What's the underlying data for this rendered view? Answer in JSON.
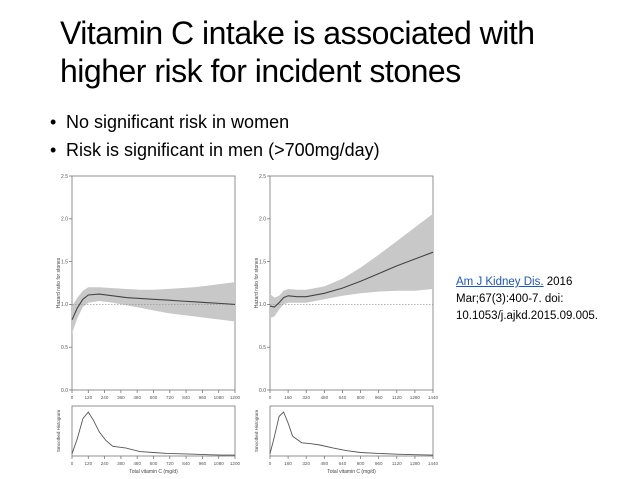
{
  "slide": {
    "title": "Vitamin C intake is associated with higher risk for incident stones",
    "bullets": [
      "No significant risk in women",
      "Risk is significant in men (>700mg/day)"
    ],
    "citation": {
      "link_text": "Am J Kidney Dis.",
      "text": " 2016 Mar;67(3):400-7. doi: 10.1053/j.ajkd.2015.09.005."
    }
  },
  "colors": {
    "band": "#c8c8c8",
    "line": "#444444",
    "link": "#1f57b5"
  },
  "chart_data": [
    {
      "type": "line",
      "ylabel": "Hazard ratio for stones",
      "xlabel": "Total vitamin C (mg/d)",
      "hist_label": "Smoothed Histogram",
      "xlim": [
        0,
        1200
      ],
      "ylim": [
        0,
        2.5
      ],
      "xticks": [
        "0",
        "120",
        "240",
        "360",
        "480",
        "600",
        "720",
        "840",
        "960",
        "1080",
        "1200"
      ],
      "yticks": [
        "0.0",
        "0.5",
        "1.0",
        "1.5",
        "2.0",
        "2.5"
      ],
      "reference_line": 1.0,
      "hr_x": [
        0,
        40,
        80,
        120,
        200,
        300,
        400,
        500,
        600,
        700,
        800,
        900,
        1000,
        1100,
        1200
      ],
      "hr": [
        0.82,
        0.96,
        1.06,
        1.11,
        1.12,
        1.1,
        1.08,
        1.07,
        1.06,
        1.05,
        1.04,
        1.03,
        1.02,
        1.01,
        1.0
      ],
      "ci_lower": [
        0.66,
        0.84,
        0.97,
        1.02,
        1.04,
        1.02,
        0.99,
        0.96,
        0.93,
        0.9,
        0.88,
        0.86,
        0.84,
        0.82,
        0.8
      ],
      "ci_upper": [
        0.98,
        1.08,
        1.16,
        1.2,
        1.2,
        1.19,
        1.18,
        1.17,
        1.17,
        1.18,
        1.19,
        1.2,
        1.22,
        1.24,
        1.26
      ],
      "hist_x": [
        0,
        40,
        80,
        120,
        160,
        200,
        250,
        300,
        350,
        400,
        500,
        600,
        700,
        800,
        900,
        1000,
        1100,
        1200
      ],
      "hist_y": [
        0.05,
        0.4,
        0.85,
        1.0,
        0.8,
        0.55,
        0.35,
        0.22,
        0.2,
        0.18,
        0.1,
        0.08,
        0.06,
        0.05,
        0.04,
        0.03,
        0.02,
        0.02
      ]
    },
    {
      "type": "line",
      "ylabel": "Hazard ratio for stones",
      "xlabel": "Total vitamin C (mg/d)",
      "hist_label": "Smoothed Histogram",
      "xlim": [
        0,
        1440
      ],
      "ylim": [
        0,
        2.5
      ],
      "xticks": [
        "0",
        "160",
        "320",
        "480",
        "640",
        "800",
        "960",
        "1120",
        "1280",
        "1440"
      ],
      "yticks": [
        "0.0",
        "0.5",
        "1.0",
        "1.5",
        "2.0",
        "2.5"
      ],
      "reference_line": 1.0,
      "hr_x": [
        0,
        40,
        80,
        120,
        160,
        240,
        320,
        480,
        640,
        800,
        960,
        1120,
        1280,
        1440
      ],
      "hr": [
        0.98,
        0.97,
        1.02,
        1.08,
        1.1,
        1.09,
        1.09,
        1.13,
        1.19,
        1.27,
        1.36,
        1.45,
        1.53,
        1.61
      ],
      "ci_lower": [
        0.84,
        0.86,
        0.94,
        1.0,
        1.02,
        1.02,
        1.02,
        1.06,
        1.1,
        1.13,
        1.15,
        1.16,
        1.16,
        1.18
      ],
      "ci_upper": [
        1.12,
        1.08,
        1.1,
        1.16,
        1.18,
        1.17,
        1.17,
        1.21,
        1.3,
        1.43,
        1.58,
        1.74,
        1.9,
        2.06
      ],
      "hist_x": [
        0,
        40,
        80,
        120,
        160,
        200,
        280,
        360,
        440,
        560,
        680,
        800,
        960,
        1120,
        1280,
        1440
      ],
      "hist_y": [
        0.05,
        0.45,
        0.9,
        1.0,
        0.75,
        0.45,
        0.3,
        0.28,
        0.25,
        0.18,
        0.12,
        0.08,
        0.06,
        0.04,
        0.03,
        0.02
      ]
    }
  ]
}
